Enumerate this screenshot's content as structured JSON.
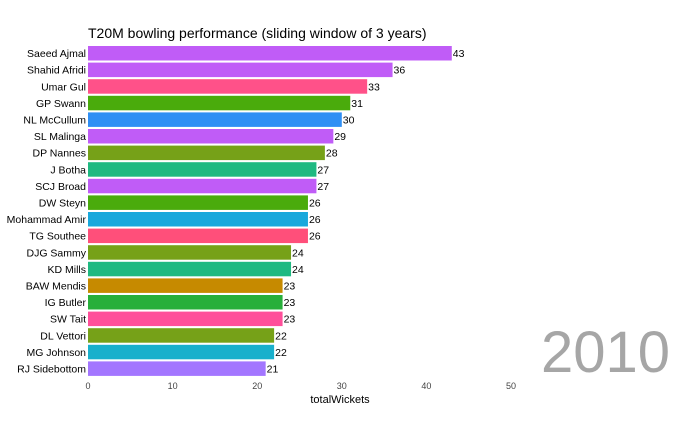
{
  "chart_data": {
    "type": "bar",
    "orientation": "horizontal",
    "title": "T20M  bowling performance (sliding window of 3 years)",
    "xlabel": "totalWickets",
    "ylabel": "",
    "xlim": [
      0,
      50
    ],
    "xticks": [
      0,
      10,
      20,
      30,
      40,
      50
    ],
    "year_label": "2010",
    "grid": false,
    "bars": [
      {
        "name": "Saeed Ajmal",
        "value": 43,
        "color": "#c05cf7"
      },
      {
        "name": "Shahid Afridi",
        "value": 36,
        "color": "#c05cf7"
      },
      {
        "name": "Umar Gul",
        "value": 33,
        "color": "#ff5189"
      },
      {
        "name": "GP Swann",
        "value": 31,
        "color": "#4aab0c"
      },
      {
        "name": "NL McCullum",
        "value": 30,
        "color": "#2f8ff4"
      },
      {
        "name": "SL Malinga",
        "value": 29,
        "color": "#c05cf7"
      },
      {
        "name": "DP Nannes",
        "value": 28,
        "color": "#76a118"
      },
      {
        "name": "J Botha",
        "value": 27,
        "color": "#1fb981"
      },
      {
        "name": "SCJ Broad",
        "value": 27,
        "color": "#c05cf7"
      },
      {
        "name": "DW Steyn",
        "value": 26,
        "color": "#4aab0c"
      },
      {
        "name": "Mohammad Amir",
        "value": 26,
        "color": "#19a8dc"
      },
      {
        "name": "TG Southee",
        "value": 26,
        "color": "#ff4f7a"
      },
      {
        "name": "DJG Sammy",
        "value": 24,
        "color": "#76a118"
      },
      {
        "name": "KD Mills",
        "value": 24,
        "color": "#1fb981"
      },
      {
        "name": "BAW Mendis",
        "value": 23,
        "color": "#c68a00"
      },
      {
        "name": "IG Butler",
        "value": 23,
        "color": "#27af3a"
      },
      {
        "name": "SW Tait",
        "value": 23,
        "color": "#ff4f9a"
      },
      {
        "name": "DL Vettori",
        "value": 22,
        "color": "#76a118"
      },
      {
        "name": "MG Johnson",
        "value": 22,
        "color": "#19b0cc"
      },
      {
        "name": "RJ Sidebottom",
        "value": 21,
        "color": "#a376ff"
      }
    ]
  }
}
